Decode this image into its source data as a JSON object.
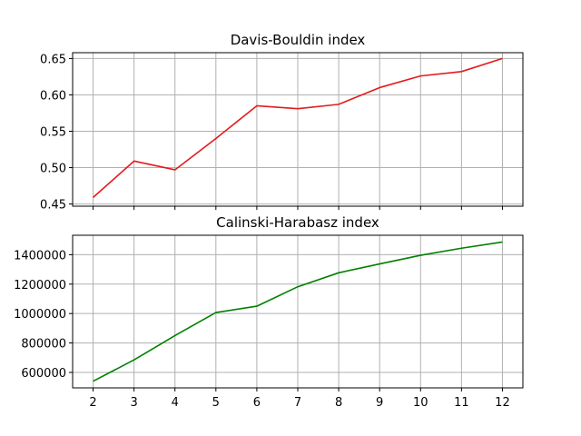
{
  "chart_data": [
    {
      "type": "line",
      "title": "Davis-Bouldin index",
      "xlabel": "",
      "ylabel": "",
      "x": [
        2,
        3,
        4,
        5,
        6,
        7,
        8,
        9,
        10,
        11,
        12
      ],
      "series": [
        {
          "values": [
            0.459,
            0.509,
            0.497,
            0.54,
            0.585,
            0.581,
            0.587,
            0.61,
            0.626,
            0.632,
            0.65
          ],
          "color": "#e31a1c"
        }
      ],
      "xlim": [
        1.5,
        12.5
      ],
      "ylim": [
        0.447,
        0.658
      ],
      "yticks": [
        0.45,
        0.5,
        0.55,
        0.6,
        0.65
      ],
      "ytick_labels": [
        "0.45",
        "0.50",
        "0.55",
        "0.60",
        "0.65"
      ],
      "show_xtick_labels": false,
      "grid": true
    },
    {
      "type": "line",
      "title": "Calinski-Harabasz index",
      "xlabel": "",
      "ylabel": "",
      "x": [
        2,
        3,
        4,
        5,
        6,
        7,
        8,
        9,
        10,
        11,
        12
      ],
      "series": [
        {
          "values": [
            540000,
            685000,
            850000,
            1007000,
            1050000,
            1182000,
            1277000,
            1337000,
            1396000,
            1444000,
            1486000
          ],
          "color": "#008000"
        }
      ],
      "xlim": [
        1.5,
        12.5
      ],
      "ylim": [
        495000,
        1532000
      ],
      "yticks": [
        600000,
        800000,
        1000000,
        1200000,
        1400000
      ],
      "ytick_labels": [
        "600000",
        "800000",
        "1000000",
        "1200000",
        "1400000"
      ],
      "xticks": [
        2,
        3,
        4,
        5,
        6,
        7,
        8,
        9,
        10,
        11,
        12
      ],
      "xtick_labels": [
        "2",
        "3",
        "4",
        "5",
        "6",
        "7",
        "8",
        "9",
        "10",
        "11",
        "12"
      ],
      "show_xtick_labels": true,
      "grid": true
    }
  ]
}
